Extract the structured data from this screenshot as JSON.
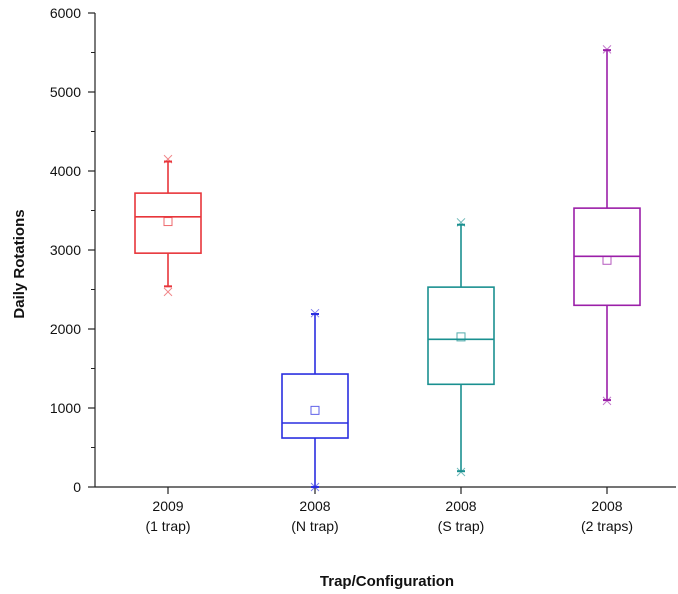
{
  "chart_data": {
    "type": "box",
    "title": "",
    "xlabel": "Trap/Configuration",
    "ylabel": "Daily Rotations",
    "ylim": [
      0,
      6000
    ],
    "yticks": [
      "0",
      "1000",
      "2000",
      "3000",
      "4000",
      "5000",
      "6000"
    ],
    "grid": false,
    "categories": [
      {
        "line1": "2009",
        "line2": "(1 trap)"
      },
      {
        "line1": "2008",
        "line2": "(N trap)"
      },
      {
        "line1": "2008",
        "line2": "(S trap)"
      },
      {
        "line1": "2008",
        "line2": "(2 traps)"
      }
    ],
    "boxes": [
      {
        "color": "#e8363b",
        "whisker_low": 2540,
        "q1": 2960,
        "median": 3420,
        "q3": 3720,
        "whisker_high": 4120,
        "mean": 3360,
        "min": 2470,
        "max": 4150
      },
      {
        "color": "#2a2ee0",
        "whisker_low": 0,
        "q1": 620,
        "median": 810,
        "q3": 1430,
        "whisker_high": 2190,
        "mean": 970,
        "min": 0,
        "max": 2200
      },
      {
        "color": "#1a9090",
        "whisker_low": 200,
        "q1": 1300,
        "median": 1870,
        "q3": 2530,
        "whisker_high": 3320,
        "mean": 1900,
        "min": 190,
        "max": 3350
      },
      {
        "color": "#9b1fa8",
        "whisker_low": 1100,
        "q1": 2300,
        "median": 2920,
        "q3": 3530,
        "whisker_high": 5530,
        "mean": 2870,
        "min": 1090,
        "max": 5540
      }
    ]
  }
}
